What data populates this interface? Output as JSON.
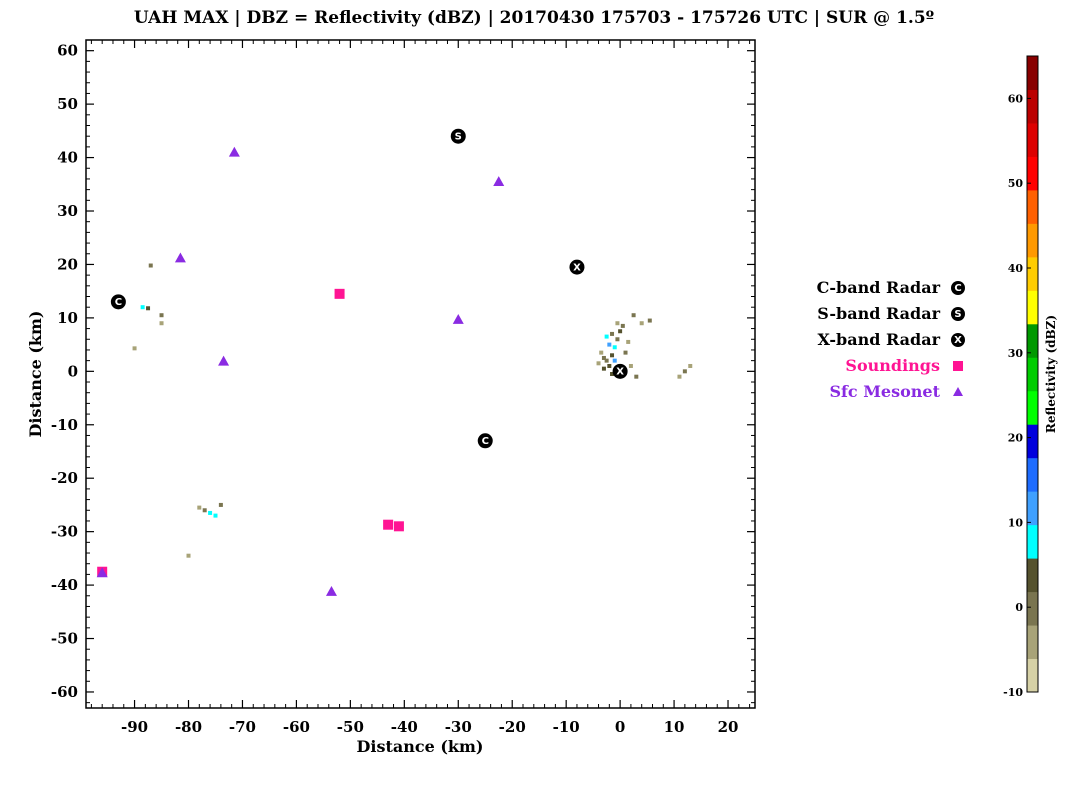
{
  "chart_data": {
    "type": "scatter",
    "title": "UAH MAX | DBZ = Reflectivity (dBZ) | 20170430 175703 - 175726 UTC | SUR @ 1.5º",
    "xlabel": "Distance (km)",
    "ylabel": "Distance (km)",
    "xlim": [
      -99,
      25
    ],
    "ylim": [
      -63,
      62
    ],
    "xticks": [
      "-90",
      "-80",
      "-70",
      "-60",
      "-50",
      "-40",
      "-30",
      "-20",
      "-10",
      "0",
      "10",
      "20"
    ],
    "yticks": [
      "60",
      "50",
      "40",
      "30",
      "20",
      "10",
      "0",
      "-10",
      "-20",
      "-30",
      "-40",
      "-50",
      "-60"
    ],
    "xtick_values": [
      -90,
      -80,
      -70,
      -60,
      -50,
      -40,
      -30,
      -20,
      -10,
      0,
      10,
      20
    ],
    "ytick_values": [
      60,
      50,
      40,
      30,
      20,
      10,
      0,
      -10,
      -20,
      -30,
      -40,
      -50,
      -60
    ],
    "grid": false,
    "legend_position": "right",
    "series": [
      {
        "name": "C-band Radar",
        "marker": "circle-letter",
        "letter": "C",
        "color": "#000000",
        "points": [
          [
            -93,
            13
          ],
          [
            -25,
            -13
          ]
        ]
      },
      {
        "name": "S-band Radar",
        "marker": "circle-letter",
        "letter": "S",
        "color": "#000000",
        "points": [
          [
            -30,
            44
          ]
        ]
      },
      {
        "name": "X-band Radar",
        "marker": "circle-letter",
        "letter": "X",
        "color": "#000000",
        "points": [
          [
            -8,
            19.5
          ],
          [
            0,
            0
          ]
        ]
      },
      {
        "name": "Soundings",
        "marker": "square",
        "color": "#ff1493",
        "points": [
          [
            -52,
            14.5
          ],
          [
            -43,
            -28.7
          ],
          [
            -41,
            -29
          ],
          [
            -96,
            -37.5
          ]
        ]
      },
      {
        "name": "Sfc Mesonet",
        "marker": "triangle",
        "color": "#8a2be2",
        "points": [
          [
            -71.5,
            41
          ],
          [
            -22.5,
            35.5
          ],
          [
            -81.5,
            21.2
          ],
          [
            -30,
            9.7
          ],
          [
            -73.5,
            1.9
          ],
          [
            -53.5,
            -41.2
          ],
          [
            -96,
            -37.7
          ]
        ]
      }
    ],
    "reflectivity_echoes": [
      {
        "x": -2.5,
        "y": 2,
        "dbz": 2
      },
      {
        "x": -1.5,
        "y": 3,
        "dbz": 5
      },
      {
        "x": -2,
        "y": 1,
        "dbz": 8
      },
      {
        "x": -1,
        "y": 4.5,
        "dbz": 12
      },
      {
        "x": -3,
        "y": 2.5,
        "dbz": 0
      },
      {
        "x": -0.5,
        "y": 6,
        "dbz": 2
      },
      {
        "x": 0,
        "y": 7.5,
        "dbz": 5
      },
      {
        "x": -2,
        "y": 5,
        "dbz": 15
      },
      {
        "x": -3.5,
        "y": 3.5,
        "dbz": -2
      },
      {
        "x": -1,
        "y": 2,
        "dbz": 18
      },
      {
        "x": 1,
        "y": 3.5,
        "dbz": 0
      },
      {
        "x": 0.5,
        "y": 8.5,
        "dbz": 2
      },
      {
        "x": -0.5,
        "y": 9,
        "dbz": -5
      },
      {
        "x": 2.5,
        "y": 10.5,
        "dbz": 0
      },
      {
        "x": 4,
        "y": 9,
        "dbz": -2
      },
      {
        "x": 5.5,
        "y": 9.5,
        "dbz": 3
      },
      {
        "x": -3,
        "y": 0.5,
        "dbz": 5
      },
      {
        "x": -1.5,
        "y": -0.5,
        "dbz": 8
      },
      {
        "x": -4,
        "y": 1.5,
        "dbz": -3
      },
      {
        "x": 2,
        "y": 1,
        "dbz": -1
      },
      {
        "x": 3,
        "y": -1,
        "dbz": 0
      },
      {
        "x": -2.5,
        "y": 6.5,
        "dbz": 10
      },
      {
        "x": -1.5,
        "y": 7,
        "dbz": 3
      },
      {
        "x": 1.5,
        "y": 5.5,
        "dbz": -4
      },
      {
        "x": 11,
        "y": -1,
        "dbz": -2
      },
      {
        "x": 12,
        "y": 0,
        "dbz": 0
      },
      {
        "x": 13,
        "y": 1,
        "dbz": -1
      },
      {
        "x": -88.5,
        "y": 12,
        "dbz": 12
      },
      {
        "x": -87.5,
        "y": 11.8,
        "dbz": 8
      },
      {
        "x": -85,
        "y": 9,
        "dbz": -3
      },
      {
        "x": -85,
        "y": 10.5,
        "dbz": 0
      },
      {
        "x": -90,
        "y": 4.3,
        "dbz": -2
      },
      {
        "x": -87,
        "y": 19.8,
        "dbz": 0
      },
      {
        "x": -76,
        "y": -26.5,
        "dbz": 14
      },
      {
        "x": -77,
        "y": -26,
        "dbz": 2
      },
      {
        "x": -78,
        "y": -25.5,
        "dbz": -1
      },
      {
        "x": -75,
        "y": -27,
        "dbz": 10
      },
      {
        "x": -74,
        "y": -25,
        "dbz": 0
      },
      {
        "x": -80,
        "y": -34.5,
        "dbz": -2
      }
    ],
    "colorbar": {
      "label": "Reflectivity (dBZ)",
      "min": -10,
      "max": 65,
      "step": 5,
      "ticks": [
        "60",
        "50",
        "40",
        "30",
        "20",
        "10",
        "0",
        "-10"
      ],
      "tick_values": [
        60,
        50,
        40,
        30,
        20,
        10,
        0,
        -10
      ],
      "colors": [
        "#d6d1a6",
        "#a8a378",
        "#7a7550",
        "#55522e",
        "#00ffff",
        "#3fa0ff",
        "#1e6cff",
        "#0000dd",
        "#00ff00",
        "#00cc00",
        "#009900",
        "#ffff00",
        "#ffcc00",
        "#ff9900",
        "#ff6000",
        "#ff0000",
        "#dd0000",
        "#bb0000",
        "#880000"
      ]
    }
  }
}
